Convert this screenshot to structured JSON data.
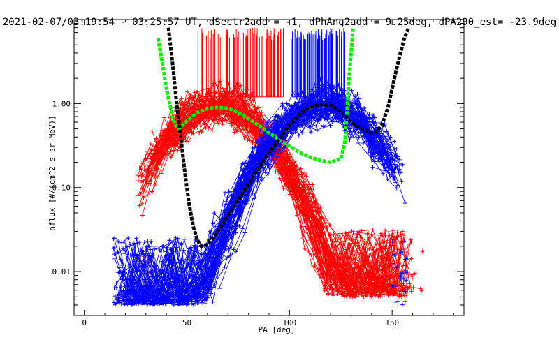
{
  "chart_data": {
    "type": "line",
    "title": "2021-02-07/03:19:54 - 03:25:57 UT, dSectr2add = -1, dPhAng2add = 9.25deg, dPA290_est= -23.9deg",
    "xlabel": "PA [deg]",
    "ylabel": "nflux [#/(cm^2 s sr MeV)]",
    "xlim": [
      -5,
      185
    ],
    "ylim": [
      0.003,
      10
    ],
    "yscale": "log",
    "x_ticks": [
      0,
      50,
      100,
      150
    ],
    "x_tick_labels": [
      "0",
      "50",
      "100",
      "150"
    ],
    "y_ticks": [
      0.01,
      0.1,
      1.0
    ],
    "y_tick_labels": [
      "0.01",
      "0.10",
      "1.00"
    ],
    "grid": false,
    "colors": {
      "red": "#ff0000",
      "blue": "#0000ff",
      "green": "#00ee00",
      "black": "#000000",
      "axis": "#000000"
    },
    "red_sweep": {
      "peak_pa": 65,
      "peak_flux": 0.93,
      "pa_range": [
        26,
        162
      ],
      "left_edge_pa": [
        26,
        35
      ],
      "right_edge_pa": [
        125,
        165
      ],
      "tail_flux_range": [
        0.005,
        0.02
      ]
    },
    "blue_sweep": {
      "peak_pa": 117,
      "peak_flux": 0.95,
      "pa_range": [
        14,
        157
      ],
      "left_edge_pa": [
        14,
        30
      ],
      "right_edge_pa": [
        150,
        157
      ],
      "tail_flux_range": [
        0.004,
        0.025
      ]
    },
    "red_rug": {
      "x_start": 55,
      "x_end": 97,
      "flux_bottom": 1.2,
      "flux_top": 8
    },
    "blue_rug": {
      "x_start": 101,
      "x_end": 127,
      "flux_bottom": 1.2,
      "flux_top": 8
    },
    "series": [
      {
        "color": "green",
        "style": "dashed",
        "x": [
          36,
          38,
          40,
          42,
          43,
          44,
          45,
          46,
          48,
          50,
          55,
          60,
          65,
          70,
          75,
          80,
          85,
          90,
          95,
          100,
          105,
          110,
          115,
          120,
          125,
          127,
          128,
          129,
          130,
          131
        ],
        "y": [
          6.0,
          3.0,
          1.5,
          0.9,
          0.7,
          0.58,
          0.52,
          0.5,
          0.56,
          0.62,
          0.78,
          0.87,
          0.9,
          0.88,
          0.78,
          0.66,
          0.55,
          0.45,
          0.37,
          0.31,
          0.26,
          0.23,
          0.21,
          0.2,
          0.22,
          0.35,
          0.8,
          2.0,
          4.0,
          8.0
        ]
      },
      {
        "color": "black",
        "style": "dashed",
        "x": [
          41,
          43,
          45,
          47,
          49,
          51,
          53,
          55,
          57,
          60,
          65,
          70,
          75,
          80,
          85,
          90,
          95,
          100,
          105,
          110,
          115,
          120,
          125,
          130,
          135,
          140,
          142,
          145,
          148,
          150,
          152,
          154,
          156,
          158
        ],
        "y": [
          8.0,
          3.0,
          1.0,
          0.4,
          0.15,
          0.065,
          0.035,
          0.024,
          0.02,
          0.021,
          0.03,
          0.046,
          0.07,
          0.11,
          0.17,
          0.26,
          0.38,
          0.55,
          0.75,
          0.9,
          0.98,
          0.95,
          0.8,
          0.6,
          0.5,
          0.45,
          0.46,
          0.55,
          0.9,
          1.5,
          2.5,
          4.0,
          6.0,
          8.0
        ]
      }
    ]
  }
}
